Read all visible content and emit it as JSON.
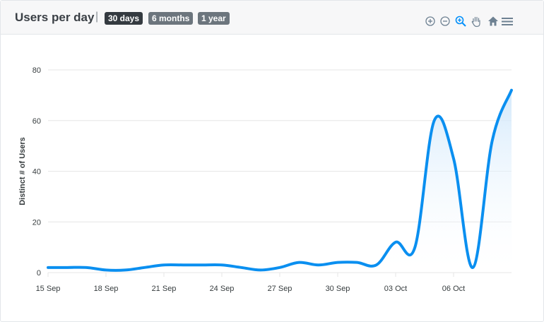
{
  "header": {
    "title": "Users per day",
    "separator": "|",
    "ranges": [
      {
        "label": "30 days",
        "active": true
      },
      {
        "label": "6 months",
        "active": false
      },
      {
        "label": "1 year",
        "active": false
      }
    ]
  },
  "toolbar": {
    "icons": [
      "zoom-in-icon",
      "zoom-out-icon",
      "zoom-select-icon",
      "pan-icon",
      "home-icon",
      "menu-icon"
    ]
  },
  "colors": {
    "line": "#0a8ff0",
    "fill_top": "#cfe7fb",
    "grid": "#e6e6e6"
  },
  "chart_data": {
    "type": "area",
    "title": "",
    "xlabel": "",
    "ylabel": "Distinct # of Users",
    "ylim": [
      0,
      80
    ],
    "yticks": [
      0,
      20,
      40,
      60,
      80
    ],
    "xticks": [
      {
        "label": "15 Sep",
        "day": 0
      },
      {
        "label": "18 Sep",
        "day": 3
      },
      {
        "label": "21 Sep",
        "day": 6
      },
      {
        "label": "24 Sep",
        "day": 9
      },
      {
        "label": "27 Sep",
        "day": 12
      },
      {
        "label": "30 Sep",
        "day": 15
      },
      {
        "label": "03 Oct",
        "day": 18
      },
      {
        "label": "06 Oct",
        "day": 21
      }
    ],
    "series": [
      {
        "x": [
          "15 Sep",
          "16 Sep",
          "17 Sep",
          "18 Sep",
          "19 Sep",
          "20 Sep",
          "21 Sep",
          "22 Sep",
          "23 Sep",
          "24 Sep",
          "25 Sep",
          "26 Sep",
          "27 Sep",
          "28 Sep",
          "29 Sep",
          "30 Sep",
          "01 Oct",
          "02 Oct",
          "03 Oct",
          "04 Oct",
          "05 Oct",
          "06 Oct",
          "07 Oct",
          "08 Oct",
          "09 Oct"
        ],
        "values": [
          2,
          2,
          2,
          1,
          1,
          2,
          3,
          3,
          3,
          3,
          2,
          1,
          2,
          4,
          3,
          4,
          4,
          3,
          12,
          10,
          60,
          45,
          2,
          52,
          72
        ]
      }
    ],
    "grid": true,
    "legend": "none"
  }
}
